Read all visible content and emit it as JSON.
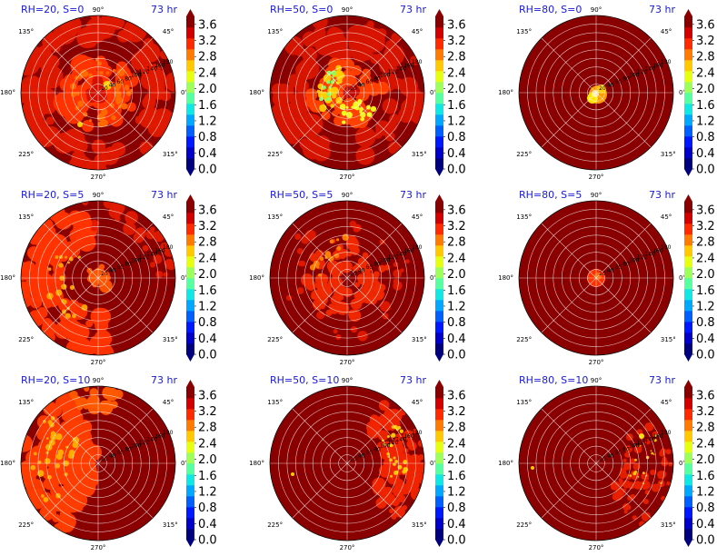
{
  "figure": {
    "time_label": "73 hr",
    "angle_labels": [
      "0°",
      "45°",
      "90°",
      "135°",
      "180°",
      "225°",
      "270°",
      "315°"
    ],
    "radial_labels": [
      "20",
      "40",
      "60",
      "80",
      "100",
      "120",
      "140",
      "160",
      "180"
    ]
  },
  "colorbar": {
    "ticks": [
      "0.0",
      "0.4",
      "0.8",
      "1.2",
      "1.6",
      "2.0",
      "2.4",
      "2.8",
      "3.2",
      "3.6"
    ],
    "colors": [
      "#00007f",
      "#0000c8",
      "#0018ff",
      "#0060ff",
      "#00a8ff",
      "#10e8e6",
      "#56ff9f",
      "#9cff5a",
      "#e6ff10",
      "#ffc800",
      "#ff7a00",
      "#ff2a00",
      "#d20000",
      "#8a0000"
    ]
  },
  "chart_data": [
    {
      "type": "heatmap",
      "projection": "polar",
      "title": "RH=20, S=0",
      "time": "73 hr",
      "rh": 20,
      "s": 0,
      "clim": [
        0.0,
        3.8
      ],
      "colormap": "jet",
      "pattern": "dense-eye"
    },
    {
      "type": "heatmap",
      "projection": "polar",
      "title": "RH=50, S=0",
      "time": "73 hr",
      "rh": 50,
      "s": 0,
      "clim": [
        0.0,
        3.8
      ],
      "colormap": "jet",
      "pattern": "ring-bands"
    },
    {
      "type": "heatmap",
      "projection": "polar",
      "title": "RH=80, S=0",
      "time": "73 hr",
      "rh": 80,
      "s": 0,
      "clim": [
        0.0,
        3.8
      ],
      "colormap": "jet",
      "pattern": "small-core"
    },
    {
      "type": "heatmap",
      "projection": "polar",
      "title": "RH=20, S=5",
      "time": "73 hr",
      "rh": 20,
      "s": 5,
      "clim": [
        0.0,
        3.8
      ],
      "colormap": "jet",
      "pattern": "spiral-west"
    },
    {
      "type": "heatmap",
      "projection": "polar",
      "title": "RH=50, S=5",
      "time": "73 hr",
      "rh": 50,
      "s": 5,
      "clim": [
        0.0,
        3.8
      ],
      "colormap": "jet",
      "pattern": "inner-ring"
    },
    {
      "type": "heatmap",
      "projection": "polar",
      "title": "RH=80, S=5",
      "time": "73 hr",
      "rh": 80,
      "s": 5,
      "clim": [
        0.0,
        3.8
      ],
      "colormap": "jet",
      "pattern": "tiny-core"
    },
    {
      "type": "heatmap",
      "projection": "polar",
      "title": "RH=20, S=10",
      "time": "73 hr",
      "rh": 20,
      "s": 10,
      "clim": [
        0.0,
        3.8
      ],
      "colormap": "jet",
      "pattern": "west-half"
    },
    {
      "type": "heatmap",
      "projection": "polar",
      "title": "RH=50, S=10",
      "time": "73 hr",
      "rh": 50,
      "s": 10,
      "clim": [
        0.0,
        3.8
      ],
      "colormap": "jet",
      "pattern": "east-band"
    },
    {
      "type": "heatmap",
      "projection": "polar",
      "title": "RH=80, S=10",
      "time": "73 hr",
      "rh": 80,
      "s": 10,
      "clim": [
        0.0,
        3.8
      ],
      "colormap": "jet",
      "pattern": "east-sparse"
    }
  ]
}
